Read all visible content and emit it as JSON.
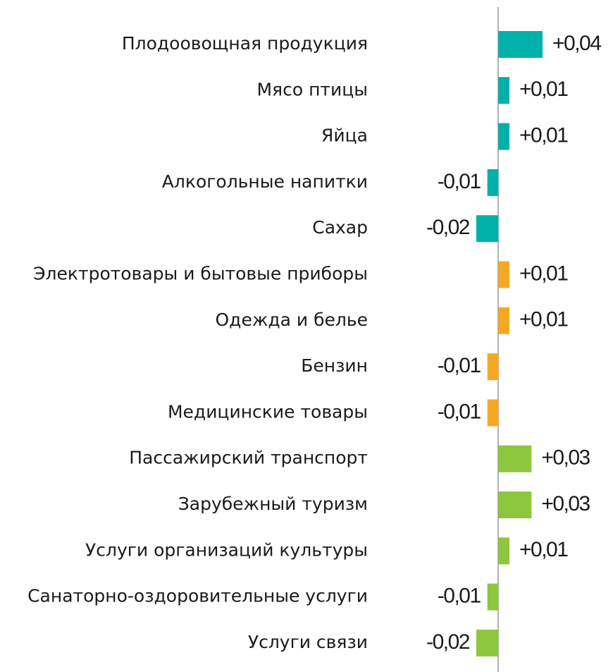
{
  "chart_data": {
    "type": "bar",
    "orientation": "horizontal",
    "categories": [
      "Плодоовощная продукция",
      "Мясо птицы",
      "Яйца",
      "Алкогольные напитки",
      "Сахар",
      "Электротовары и бытовые приборы",
      "Одежда и белье",
      "Бензин",
      "Медицинские товары",
      "Пассажирский транспорт",
      "Зарубежный туризм",
      "Услуги организаций культуры",
      "Санаторно-оздоровительные услуги",
      "Услуги связи"
    ],
    "values": [
      0.04,
      0.01,
      0.01,
      -0.01,
      -0.02,
      0.01,
      0.01,
      -0.01,
      -0.01,
      0.03,
      0.03,
      0.01,
      -0.01,
      -0.02
    ],
    "value_labels": [
      "+0,04",
      "+0,01",
      "+0,01",
      "-0,01",
      "-0,02",
      "+0,01",
      "+0,01",
      "-0,01",
      "-0,01",
      "+0,03",
      "+0,03",
      "+0,01",
      "-0,01",
      "-0,02"
    ],
    "colors": [
      "#00b1a9",
      "#00b1a9",
      "#00b1a9",
      "#00b1a9",
      "#00b1a9",
      "#f7a823",
      "#f7a823",
      "#f7a823",
      "#f7a823",
      "#8dc63f",
      "#8dc63f",
      "#8dc63f",
      "#8dc63f",
      "#8dc63f"
    ],
    "xlim": [
      -0.02,
      0.04
    ]
  }
}
